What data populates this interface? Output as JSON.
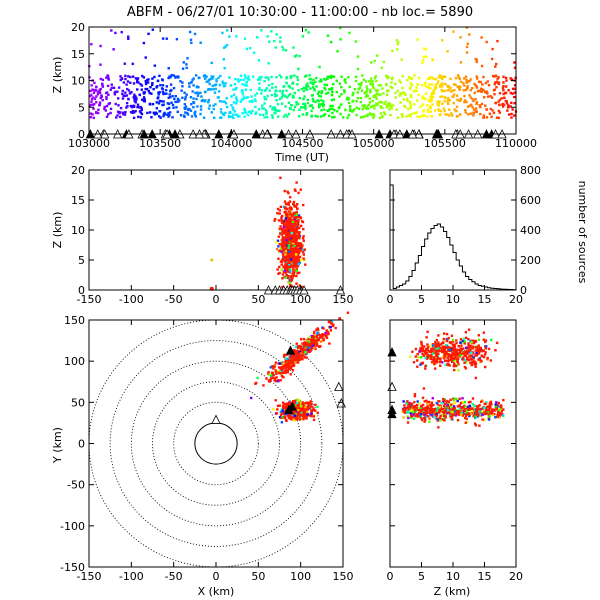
{
  "title": "ABFM - 06/27/01 10:30:00 - 11:00:00 - nb loc.=   5890",
  "chart_data": [
    {
      "id": "time_height",
      "type": "scatter",
      "xlabel": "Time (UT)",
      "ylabel": "Z (km)",
      "xlim": [
        103000,
        110000
      ],
      "ylim": [
        0,
        20
      ],
      "xticks": [
        "103000",
        "103500",
        "104000",
        "104500",
        "105000",
        "105500",
        "110000"
      ],
      "yticks": [
        "0",
        "5",
        "10",
        "15",
        "20"
      ],
      "description_levels": {
        "core_z": [
          3,
          11
        ],
        "outlier_z": [
          12,
          20
        ]
      },
      "station_z": 0
    },
    {
      "id": "x_height",
      "type": "scatter",
      "xlabel": "",
      "ylabel": "Z (km)",
      "xlim": [
        -150,
        150
      ],
      "ylim": [
        0,
        20
      ],
      "xticks": [
        "-150",
        "-100",
        "-50",
        "0",
        "50",
        "100",
        "150"
      ],
      "yticks": [
        "0",
        "5",
        "10",
        "15",
        "20"
      ],
      "cluster": {
        "x_center": 88,
        "x_spread": 10,
        "z_center": 8,
        "z_spread": 3
      },
      "stations_x": [
        62,
        70,
        75,
        80,
        84,
        88,
        90,
        93,
        96,
        100,
        104,
        147
      ]
    },
    {
      "id": "height_histogram",
      "type": "line",
      "xlabel": "",
      "ylabel": "number of sources",
      "xlim": [
        0,
        20
      ],
      "ylim": [
        0,
        800
      ],
      "xticks": [
        "0",
        "5",
        "10",
        "15",
        "20"
      ],
      "yticks": [
        "0",
        "200",
        "400",
        "600",
        "800"
      ],
      "x": [
        0,
        0.5,
        1,
        1.5,
        2,
        2.5,
        3,
        3.5,
        4,
        4.5,
        5,
        5.5,
        6,
        6.5,
        7,
        7.5,
        8,
        8.5,
        9,
        9.5,
        10,
        10.5,
        11,
        11.5,
        12,
        12.5,
        13,
        13.5,
        14,
        14.5,
        15,
        15.5,
        16,
        16.5,
        17,
        17.5,
        18,
        18.5,
        19,
        19.5
      ],
      "values": [
        700,
        10,
        20,
        30,
        40,
        60,
        90,
        130,
        180,
        230,
        290,
        340,
        380,
        410,
        430,
        440,
        420,
        390,
        350,
        300,
        250,
        200,
        160,
        120,
        90,
        70,
        55,
        40,
        30,
        25,
        20,
        15,
        12,
        10,
        8,
        6,
        5,
        4,
        3,
        2
      ]
    },
    {
      "id": "plan_view",
      "type": "scatter",
      "xlabel": "X (km)",
      "ylabel": "Y (km)",
      "xlim": [
        -150,
        150
      ],
      "ylim": [
        -150,
        150
      ],
      "xticks": [
        "-150",
        "-100",
        "-50",
        "0",
        "50",
        "100",
        "150"
      ],
      "yticks": [
        "-150",
        "-100",
        "-50",
        "0",
        "50",
        "100",
        "150"
      ],
      "range_rings_km": [
        25,
        50,
        75,
        100,
        125,
        150
      ],
      "clusters": [
        {
          "x_center": 100,
          "y_center": 112,
          "note": "northern cell"
        },
        {
          "x_center": 95,
          "y_center": 40,
          "note": "southern cell"
        }
      ],
      "stations": [
        [
          88,
          112
        ],
        [
          86,
          40
        ],
        [
          90,
          44
        ],
        [
          145,
          68
        ],
        [
          148,
          48
        ],
        [
          0,
          28
        ]
      ]
    },
    {
      "id": "z_y_view",
      "type": "scatter",
      "xlabel": "Z (km)",
      "ylabel": "",
      "xlim": [
        0,
        20
      ],
      "ylim": [
        -150,
        150
      ],
      "xticks": [
        "0",
        "5",
        "10",
        "15",
        "20"
      ],
      "yticks": [
        "-150",
        "-100",
        "-50",
        "0",
        "50",
        "100",
        "150"
      ]
    }
  ]
}
